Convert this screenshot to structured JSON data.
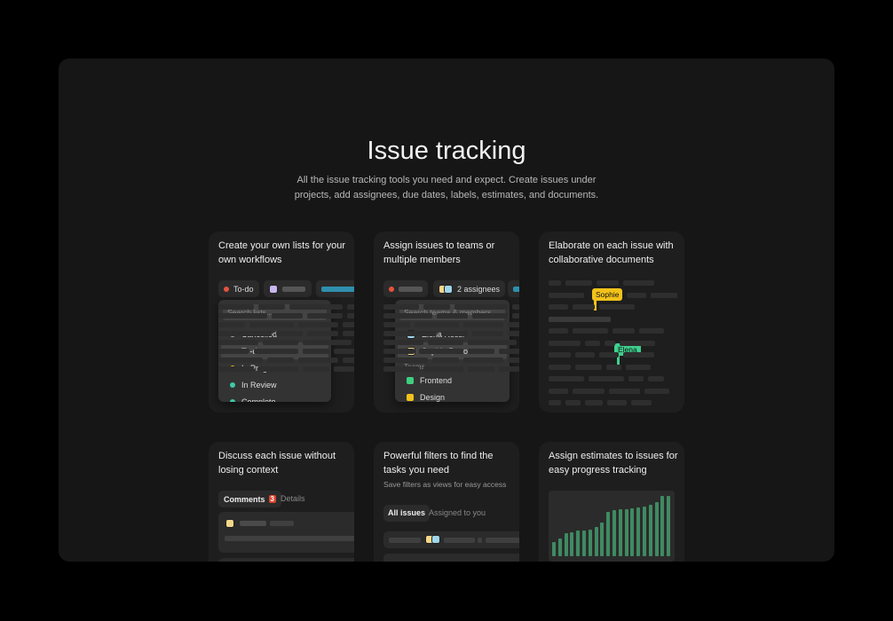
{
  "header": {
    "title": "Issue tracking",
    "subtitle_line1": "All the issue tracking tools you need and expect. Create issues under",
    "subtitle_line2": "projects, add assignees, due dates, labels, estimates, and documents."
  },
  "cards": [
    {
      "title": "Create your own lists for your own workflows",
      "status_pill": "To-do",
      "search_placeholder": "Search lists...",
      "statuses": [
        {
          "label": "Cancelled",
          "color": "#a8a8a8"
        },
        {
          "label": "To-do",
          "color": "#e5533d",
          "selected": true
        },
        {
          "label": "In Progress",
          "color": "#f2c21b"
        },
        {
          "label": "In Review",
          "color": "#3ec9a6"
        },
        {
          "label": "Complete",
          "color": "#3ec9a6"
        }
      ]
    },
    {
      "title": "Assign issues to teams or multiple members",
      "assignees_pill": "2 assignees",
      "search_placeholder": "Search teams & members...",
      "members": [
        {
          "label": "Elena Rossi",
          "color": "#9fd6ea"
        },
        {
          "label": "Sophie Petrova",
          "color": "#f5d78a",
          "selected": true
        }
      ],
      "teams_heading": "Teams",
      "teams": [
        {
          "label": "Frontend",
          "color": "#3ecf7f"
        },
        {
          "label": "Design",
          "color": "#f2c21b"
        }
      ]
    },
    {
      "title": "Elaborate on each issue with collaborative documents",
      "cursors": [
        {
          "label": "Sophie",
          "color": "#f2c21b"
        },
        {
          "label": "Elena",
          "color": "#3ecf8e"
        }
      ]
    },
    {
      "title": "Discuss each issue without losing context",
      "tabs": {
        "comments": "Comments",
        "count": "3",
        "details": "Details"
      }
    },
    {
      "title": "Powerful filters to find the tasks you need",
      "subtitle": "Save filters as views for easy access",
      "tabs": {
        "all": "All issues",
        "assigned": "Assigned to you"
      }
    },
    {
      "title": "Assign estimates to issues for easy progress tracking",
      "bar_color": "#3f8a62",
      "bar_levels": [
        24,
        30,
        38,
        40,
        43,
        43,
        44,
        48,
        56,
        73,
        76,
        78,
        78,
        80,
        81,
        83,
        86,
        90,
        100,
        100
      ]
    }
  ],
  "colors": {
    "page_bg": "#000000",
    "panel_bg": "#161616",
    "card_bg": "#1e1e1e",
    "accent_blue": "#2f8fae"
  }
}
